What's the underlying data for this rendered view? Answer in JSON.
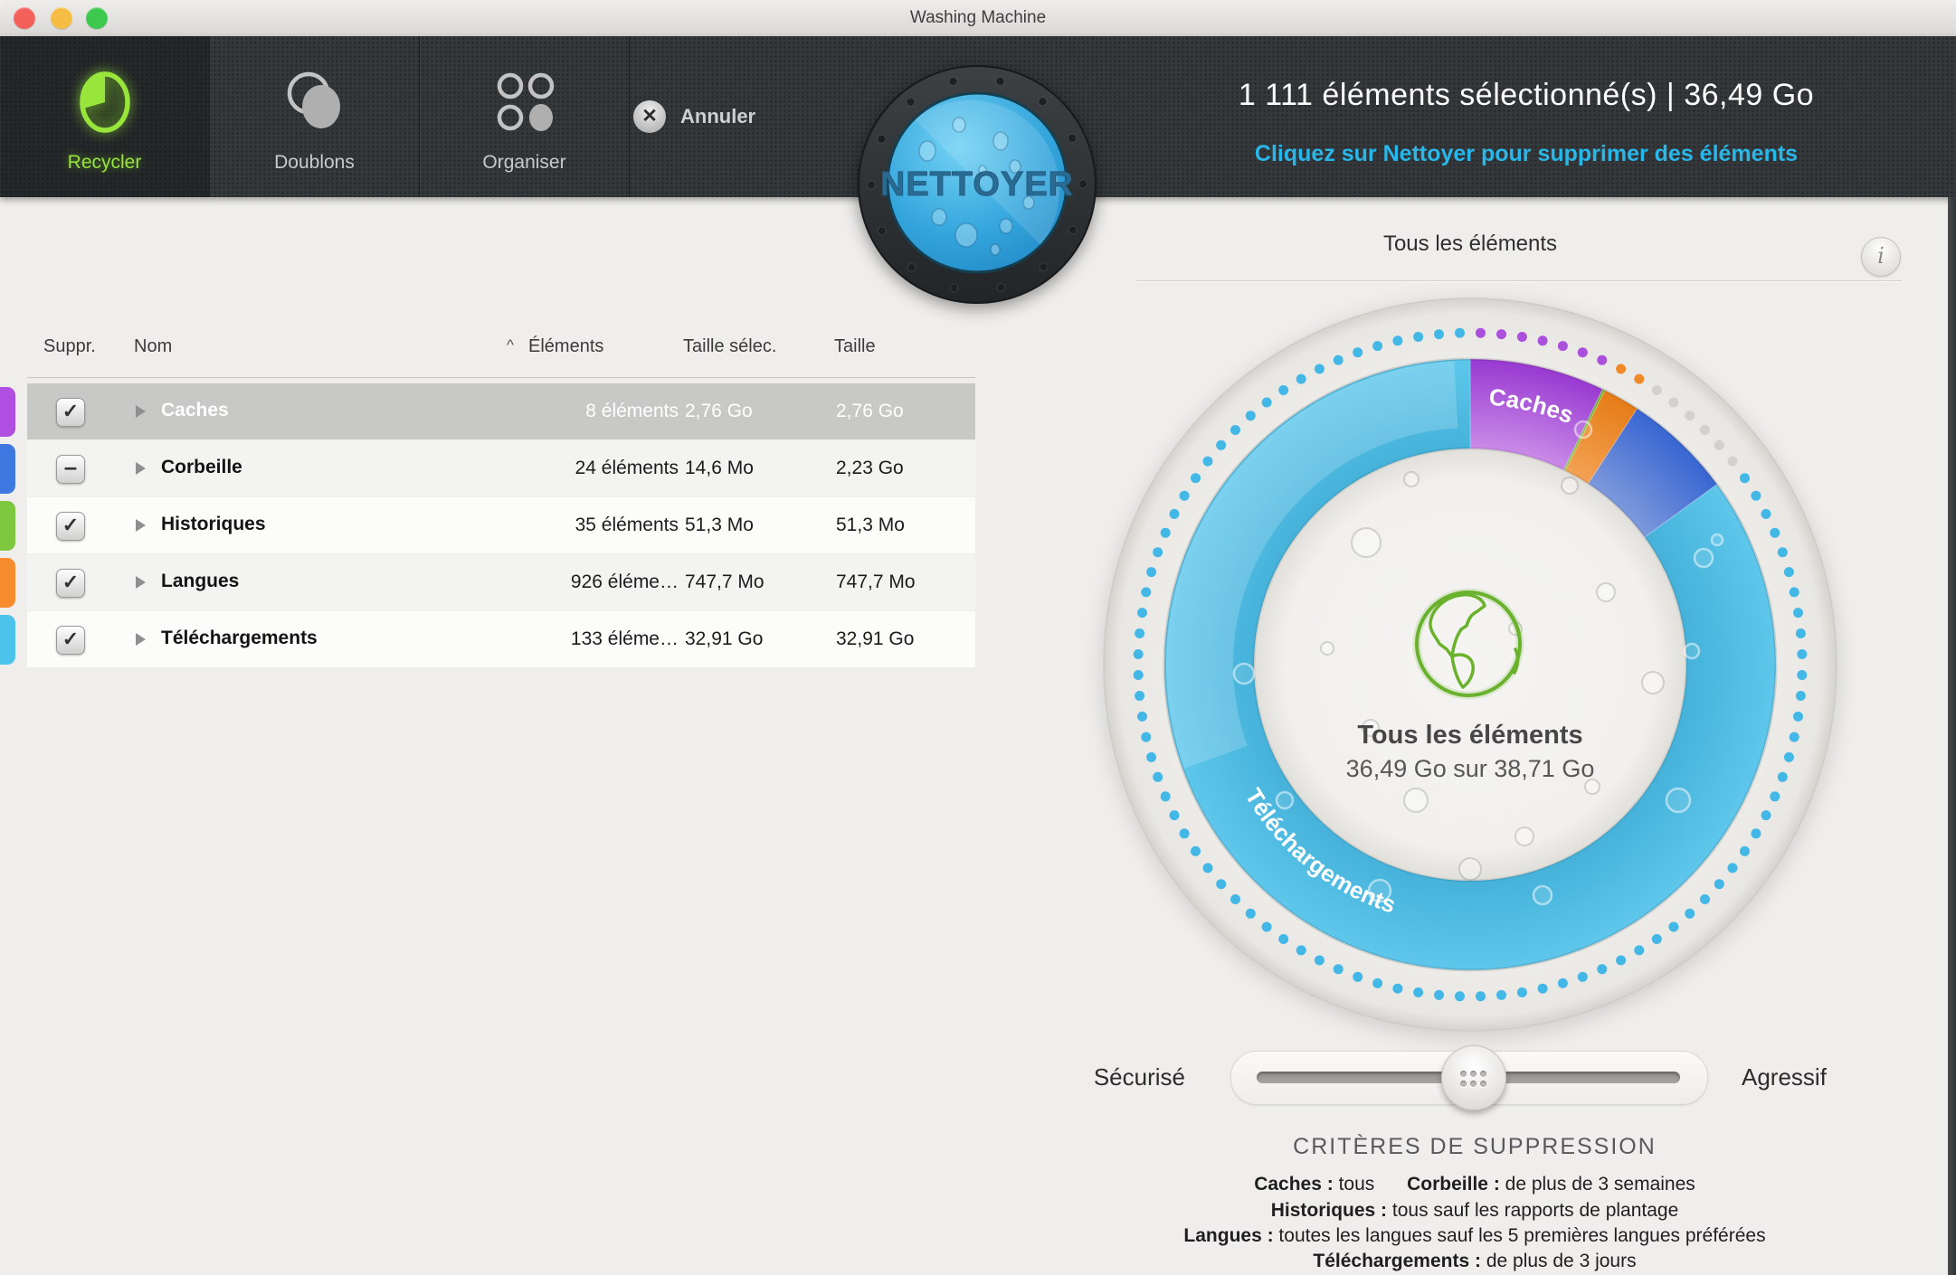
{
  "window": {
    "title": "Washing Machine",
    "traffic_lights": [
      "#f4605a",
      "#f6bd44",
      "#3dc94e"
    ]
  },
  "toolbar": {
    "tabs": [
      {
        "label": "Recycler",
        "active": true
      },
      {
        "label": "Doublons",
        "active": false
      },
      {
        "label": "Organiser",
        "active": false
      }
    ],
    "cancel_label": "Annuler",
    "clean_label": "NETTOYER",
    "status_line1": "1 111 éléments sélectionné(s) | 36,49 Go",
    "status_line2": "Cliquez sur Nettoyer pour supprimer des éléments",
    "accent_blue": "#29b6e9"
  },
  "table": {
    "headers": {
      "suppr": "Suppr.",
      "nom": "Nom",
      "sort_indicator": "^",
      "elements": "Éléments",
      "taille_selec": "Taille sélec.",
      "taille": "Taille"
    },
    "selected_row": 0,
    "rows": [
      {
        "name": "Caches",
        "elements": "8 éléments",
        "taille_selec": "2,76 Go",
        "taille": "2,76 Go",
        "checkbox": "checked",
        "color": "#b14ee2",
        "selected": true
      },
      {
        "name": "Corbeille",
        "elements": "24 éléments",
        "taille_selec": "14,6 Mo",
        "taille": "2,23 Go",
        "checkbox": "mixed",
        "color": "#3f78e0",
        "selected": false
      },
      {
        "name": "Historiques",
        "elements": "35 éléments",
        "taille_selec": "51,3 Mo",
        "taille": "51,3 Mo",
        "checkbox": "checked",
        "color": "#7dc83e",
        "selected": false
      },
      {
        "name": "Langues",
        "elements": "926 éléme…",
        "taille_selec": "747,7 Mo",
        "taille": "747,7 Mo",
        "checkbox": "checked",
        "color": "#f68c2e",
        "selected": false
      },
      {
        "name": "Téléchargements",
        "elements": "133 éléme…",
        "taille_selec": "32,91 Go",
        "taille": "32,91 Go",
        "checkbox": "checked",
        "color": "#4cc3ea",
        "selected": false
      }
    ]
  },
  "panel": {
    "title": "Tous les éléments",
    "slider": {
      "left": "Sécurisé",
      "right": "Agressif",
      "value_pct": 51
    },
    "criteria": {
      "title": "CRITÈRES DE SUPPRESSION",
      "lines": [
        [
          {
            "label": "Caches :",
            "text": " tous"
          },
          {
            "label": "Corbeille :",
            "text": " de plus de 3 semaines"
          }
        ],
        [
          {
            "label": "Historiques :",
            "text": " tous sauf les rapports de plantage"
          }
        ],
        [
          {
            "label": "Langues :",
            "text": " toutes les langues sauf les 5 premières langues préférées"
          }
        ],
        [
          {
            "label": "Téléchargements :",
            "text": " de plus de 3 jours"
          }
        ]
      ]
    }
  },
  "chart_data": {
    "type": "pie",
    "subtype": "donut",
    "title": "Tous les éléments",
    "center_label": "36,49 Go sur 38,71 Go",
    "total_go": 38.71,
    "selected_go": 36.49,
    "start_angle_deg": 0,
    "clockwise": true,
    "segments": [
      {
        "name": "Caches",
        "value_go": 2.76,
        "label": "Caches",
        "color_inner": "#c98be7",
        "color_outer": "#9a3cd2",
        "dot_color": "#aa50dc"
      },
      {
        "name": "Historiques",
        "value_go": 0.0513,
        "label": "",
        "color_inner": "#7dc83e",
        "color_outer": "#6cb32c",
        "dot_color": "#7dc83e"
      },
      {
        "name": "Langues",
        "value_go": 0.7477,
        "label": "",
        "color_inner": "#f3a254",
        "color_outer": "#e67d18",
        "dot_color": "#f08a28"
      },
      {
        "name": "Corbeille",
        "value_go": 2.23,
        "label": "",
        "color_inner": "#7d99dc",
        "color_outer": "#3a67d2",
        "dot_color": "#d3d1cd"
      },
      {
        "name": "Téléchargements",
        "value_go": 32.91,
        "label": "Téléchargements",
        "color_inner": "#46b2da",
        "color_outer": "#5dc6ea",
        "dot_color": "#43b7e6"
      }
    ],
    "dots": {
      "count": 100,
      "radius_px": 367,
      "dot_radius_px": 5.5
    },
    "geometry": {
      "center": [
        410,
        410
      ],
      "ring_outer_r": 338,
      "ring_inner_r": 239,
      "drum_r": 405
    }
  }
}
